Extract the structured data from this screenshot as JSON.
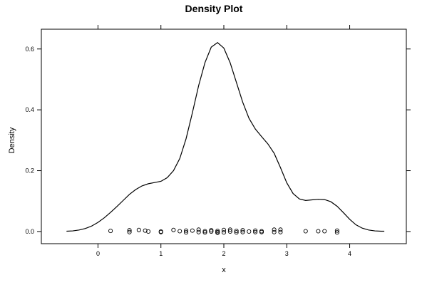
{
  "chart_data": {
    "type": "line",
    "title": "Density Plot",
    "xlabel": "x",
    "ylabel": "Density",
    "xlim": [
      -0.9,
      4.9
    ],
    "ylim": [
      -0.04,
      0.665
    ],
    "xticks": [
      0,
      1,
      2,
      3,
      4
    ],
    "xtick_labels": [
      "0",
      "1",
      "2",
      "3",
      "4"
    ],
    "yticks": [
      0.0,
      0.2,
      0.4,
      0.6
    ],
    "ytick_labels": [
      "0.0",
      "0.2",
      "0.4",
      "0.6"
    ],
    "grid": false,
    "legend": "none",
    "colors": {
      "line": "#000000",
      "points": "#000000",
      "frame": "#000000"
    },
    "series": [
      {
        "kind": "density-line",
        "x": [
          -0.5,
          -0.4,
          -0.3,
          -0.2,
          -0.1,
          0.0,
          0.1,
          0.2,
          0.3,
          0.4,
          0.5,
          0.6,
          0.7,
          0.8,
          0.9,
          1.0,
          1.1,
          1.2,
          1.3,
          1.4,
          1.5,
          1.6,
          1.7,
          1.8,
          1.9,
          2.0,
          2.1,
          2.2,
          2.3,
          2.4,
          2.5,
          2.6,
          2.7,
          2.8,
          2.9,
          3.0,
          3.1,
          3.2,
          3.3,
          3.4,
          3.5,
          3.6,
          3.7,
          3.8,
          3.9,
          4.0,
          4.1,
          4.2,
          4.3,
          4.4,
          4.5,
          4.55
        ],
        "y": [
          0.001,
          0.002,
          0.005,
          0.01,
          0.018,
          0.03,
          0.045,
          0.063,
          0.082,
          0.102,
          0.122,
          0.138,
          0.15,
          0.157,
          0.161,
          0.165,
          0.177,
          0.2,
          0.24,
          0.305,
          0.39,
          0.48,
          0.555,
          0.606,
          0.621,
          0.603,
          0.555,
          0.49,
          0.425,
          0.372,
          0.337,
          0.312,
          0.288,
          0.257,
          0.21,
          0.16,
          0.125,
          0.107,
          0.102,
          0.104,
          0.106,
          0.105,
          0.098,
          0.083,
          0.062,
          0.04,
          0.022,
          0.011,
          0.005,
          0.002,
          0.001,
          0.001
        ]
      },
      {
        "kind": "rug-points",
        "x": [
          0.2,
          0.5,
          0.5,
          0.65,
          0.75,
          0.8,
          1.0,
          1.0,
          1.2,
          1.3,
          1.4,
          1.4,
          1.5,
          1.6,
          1.6,
          1.7,
          1.7,
          1.8,
          1.8,
          1.9,
          1.9,
          1.9,
          2.0,
          2.0,
          2.1,
          2.1,
          2.2,
          2.2,
          2.3,
          2.3,
          2.4,
          2.5,
          2.5,
          2.6,
          2.6,
          2.8,
          2.8,
          2.9,
          2.9,
          3.3,
          3.5,
          3.6,
          3.8,
          3.8
        ],
        "y": [
          0.002,
          0.004,
          -0.002,
          0.005,
          0.003,
          0.0,
          0.0,
          -0.002,
          0.005,
          0.001,
          0.003,
          -0.003,
          0.003,
          0.006,
          -0.002,
          0.001,
          -0.003,
          0.004,
          0.0,
          0.002,
          -0.002,
          -0.004,
          0.005,
          -0.003,
          0.006,
          0.0,
          0.002,
          -0.003,
          0.004,
          -0.002,
          0.0,
          0.003,
          -0.002,
          0.001,
          -0.002,
          0.006,
          -0.002,
          0.006,
          -0.002,
          0.001,
          0.001,
          0.001,
          0.003,
          -0.003
        ]
      }
    ]
  }
}
